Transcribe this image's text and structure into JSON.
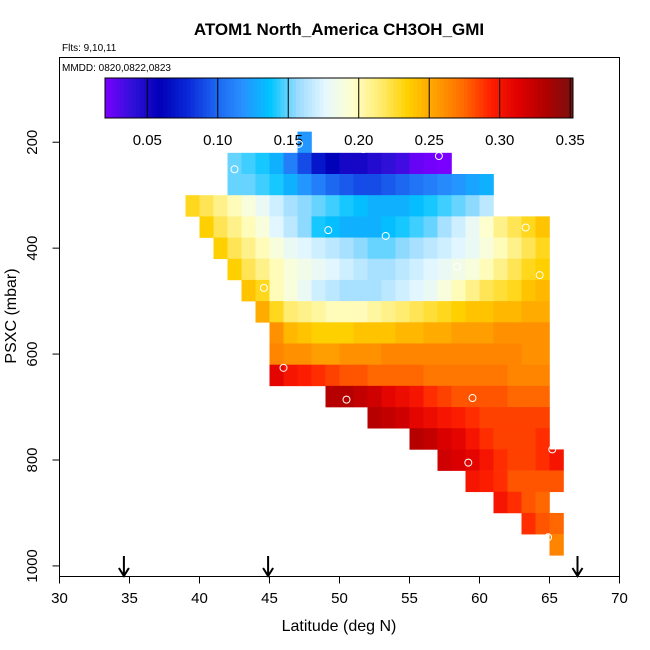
{
  "chart_data": {
    "type": "heatmap",
    "title": "ATOM1 North_America CH3OH_GMI",
    "subtitle_flights": "Flts: 9,10,11",
    "subtitle_dates": "MMDD: 0820,0822,0823",
    "xlabel": "Latitude (deg N)",
    "ylabel": "PSXC (mbar)",
    "xlim": [
      30,
      70
    ],
    "ylim": [
      1020,
      40
    ],
    "x_ticks": [
      30,
      35,
      40,
      45,
      50,
      55,
      60,
      65,
      70
    ],
    "y_ticks": [
      200,
      400,
      600,
      800,
      1000
    ],
    "colorbar": {
      "min": 0.02,
      "max": 0.352,
      "ticks": [
        0.05,
        0.1,
        0.15,
        0.2,
        0.25,
        0.3,
        0.35
      ],
      "tick_labels": [
        "0.05",
        "0.10",
        "0.15",
        "0.20",
        "0.25",
        "0.30",
        "0.35"
      ],
      "colors": [
        "#7a00ff",
        "#3010d8",
        "#0000b8",
        "#0a28d8",
        "#1c64f0",
        "#2890ff",
        "#00c4ff",
        "#9cdcff",
        "#e6f8ff",
        "#ffffcc",
        "#ffec70",
        "#ffd000",
        "#ffa000",
        "#ff6c00",
        "#ff2000",
        "#e00000",
        "#b00000",
        "#7a1010"
      ]
    },
    "lat_step": 1,
    "pressure_step": 40,
    "rows": [
      {
        "p": 180,
        "lat0": 47,
        "values": [
          0.12
        ]
      },
      {
        "p": 220,
        "lat0": 42,
        "values": [
          0.15,
          0.145,
          0.14,
          0.13,
          0.11,
          0.09,
          0.07,
          0.06,
          0.05,
          0.05,
          0.045,
          0.04,
          0.035,
          0.025,
          0.022,
          0.02
        ]
      },
      {
        "p": 260,
        "lat0": 42,
        "values": [
          0.15,
          0.15,
          0.145,
          0.14,
          0.13,
          0.12,
          0.11,
          0.1,
          0.095,
          0.09,
          0.09,
          0.095,
          0.1,
          0.105,
          0.11,
          0.115,
          0.12,
          0.125,
          0.13
        ]
      },
      {
        "p": 300,
        "lat0": 39,
        "values": [
          0.23,
          0.22,
          0.21,
          0.2,
          0.19,
          0.18,
          0.17,
          0.16,
          0.155,
          0.15,
          0.145,
          0.14,
          0.135,
          0.13,
          0.13,
          0.13,
          0.135,
          0.14,
          0.145,
          0.15,
          0.155,
          0.165
        ]
      },
      {
        "p": 340,
        "lat0": 40,
        "values": [
          0.235,
          0.22,
          0.21,
          0.2,
          0.19,
          0.175,
          0.165,
          0.155,
          0.14,
          0.135,
          0.13,
          0.13,
          0.13,
          0.135,
          0.14,
          0.145,
          0.15,
          0.16,
          0.17,
          0.18,
          0.195,
          0.21,
          0.22,
          0.23,
          0.24
        ]
      },
      {
        "p": 380,
        "lat0": 41,
        "values": [
          0.235,
          0.22,
          0.21,
          0.2,
          0.19,
          0.18,
          0.175,
          0.17,
          0.165,
          0.16,
          0.155,
          0.15,
          0.15,
          0.155,
          0.16,
          0.165,
          0.17,
          0.175,
          0.18,
          0.19,
          0.2,
          0.21,
          0.22,
          0.23
        ]
      },
      {
        "p": 420,
        "lat0": 42,
        "values": [
          0.235,
          0.22,
          0.21,
          0.2,
          0.19,
          0.185,
          0.18,
          0.175,
          0.17,
          0.165,
          0.16,
          0.16,
          0.165,
          0.17,
          0.175,
          0.18,
          0.185,
          0.19,
          0.2,
          0.21,
          0.22,
          0.23,
          0.235
        ]
      },
      {
        "p": 460,
        "lat0": 43,
        "values": [
          0.24,
          0.23,
          0.2,
          0.19,
          0.18,
          0.17,
          0.165,
          0.16,
          0.16,
          0.16,
          0.165,
          0.17,
          0.175,
          0.18,
          0.19,
          0.2,
          0.21,
          0.22,
          0.225,
          0.23,
          0.24,
          0.245
        ]
      },
      {
        "p": 500,
        "lat0": 44,
        "values": [
          0.25,
          0.23,
          0.215,
          0.21,
          0.205,
          0.2,
          0.2,
          0.2,
          0.205,
          0.21,
          0.215,
          0.22,
          0.225,
          0.23,
          0.235,
          0.24,
          0.24,
          0.245,
          0.245,
          0.25,
          0.25
        ]
      },
      {
        "p": 540,
        "lat0": 45,
        "values": [
          0.26,
          0.245,
          0.24,
          0.235,
          0.235,
          0.235,
          0.24,
          0.24,
          0.24,
          0.245,
          0.245,
          0.25,
          0.25,
          0.255,
          0.255,
          0.255,
          0.26,
          0.26,
          0.26,
          0.26
        ]
      },
      {
        "p": 580,
        "lat0": 45,
        "values": [
          0.265,
          0.26,
          0.26,
          0.255,
          0.255,
          0.26,
          0.26,
          0.26,
          0.265,
          0.265,
          0.265,
          0.265,
          0.265,
          0.265,
          0.265,
          0.265,
          0.265,
          0.265,
          0.26,
          0.26
        ]
      },
      {
        "p": 620,
        "lat0": 45,
        "values": [
          0.31,
          0.3,
          0.295,
          0.29,
          0.285,
          0.28,
          0.28,
          0.275,
          0.275,
          0.275,
          0.275,
          0.27,
          0.27,
          0.27,
          0.27,
          0.27,
          0.27,
          0.265,
          0.265,
          0.265
        ]
      },
      {
        "p": 660,
        "lat0": 49,
        "values": [
          0.33,
          0.33,
          0.325,
          0.32,
          0.31,
          0.305,
          0.3,
          0.29,
          0.285,
          0.28,
          0.28,
          0.28,
          0.28,
          0.275,
          0.275,
          0.275
        ]
      },
      {
        "p": 700,
        "lat0": 52,
        "values": [
          0.33,
          0.325,
          0.32,
          0.31,
          0.305,
          0.3,
          0.295,
          0.29,
          0.285,
          0.285,
          0.285,
          0.285,
          0.285
        ]
      },
      {
        "p": 740,
        "lat0": 55,
        "values": [
          0.33,
          0.325,
          0.315,
          0.31,
          0.3,
          0.29,
          0.285,
          0.285,
          0.285,
          0.29
        ]
      },
      {
        "p": 780,
        "lat0": 57,
        "values": [
          0.32,
          0.315,
          0.31,
          0.3,
          0.29,
          0.285,
          0.285,
          0.29,
          0.3
        ]
      },
      {
        "p": 820,
        "lat0": 59,
        "values": [
          0.3,
          0.295,
          0.29,
          0.28,
          0.28,
          0.28,
          0.28
        ]
      },
      {
        "p": 860,
        "lat0": 61,
        "values": [
          0.3,
          0.29,
          0.28,
          0.275
        ]
      },
      {
        "p": 900,
        "lat0": 63,
        "values": [
          0.29,
          0.28,
          0.275
        ]
      },
      {
        "p": 940,
        "lat0": 65,
        "values": [
          0.265
        ]
      }
    ],
    "observations": [
      {
        "lat": 47.1,
        "p": 203
      },
      {
        "lat": 51.7,
        "p": 213
      },
      {
        "lat": 57.1,
        "p": 226
      },
      {
        "lat": 42.5,
        "p": 251
      },
      {
        "lat": 49.2,
        "p": 366
      },
      {
        "lat": 53.3,
        "p": 377
      },
      {
        "lat": 63.3,
        "p": 361
      },
      {
        "lat": 58.4,
        "p": 435
      },
      {
        "lat": 64.3,
        "p": 451
      },
      {
        "lat": 44.6,
        "p": 475
      },
      {
        "lat": 46.0,
        "p": 626
      },
      {
        "lat": 50.5,
        "p": 686
      },
      {
        "lat": 59.5,
        "p": 683
      },
      {
        "lat": 65.2,
        "p": 780
      },
      {
        "lat": 59.2,
        "p": 805
      },
      {
        "lat": 64.9,
        "p": 946
      }
    ],
    "arrows_at_lat": [
      34.6,
      44.9,
      67.0
    ],
    "grid": false,
    "legend": "top (horizontal colorbar)"
  }
}
